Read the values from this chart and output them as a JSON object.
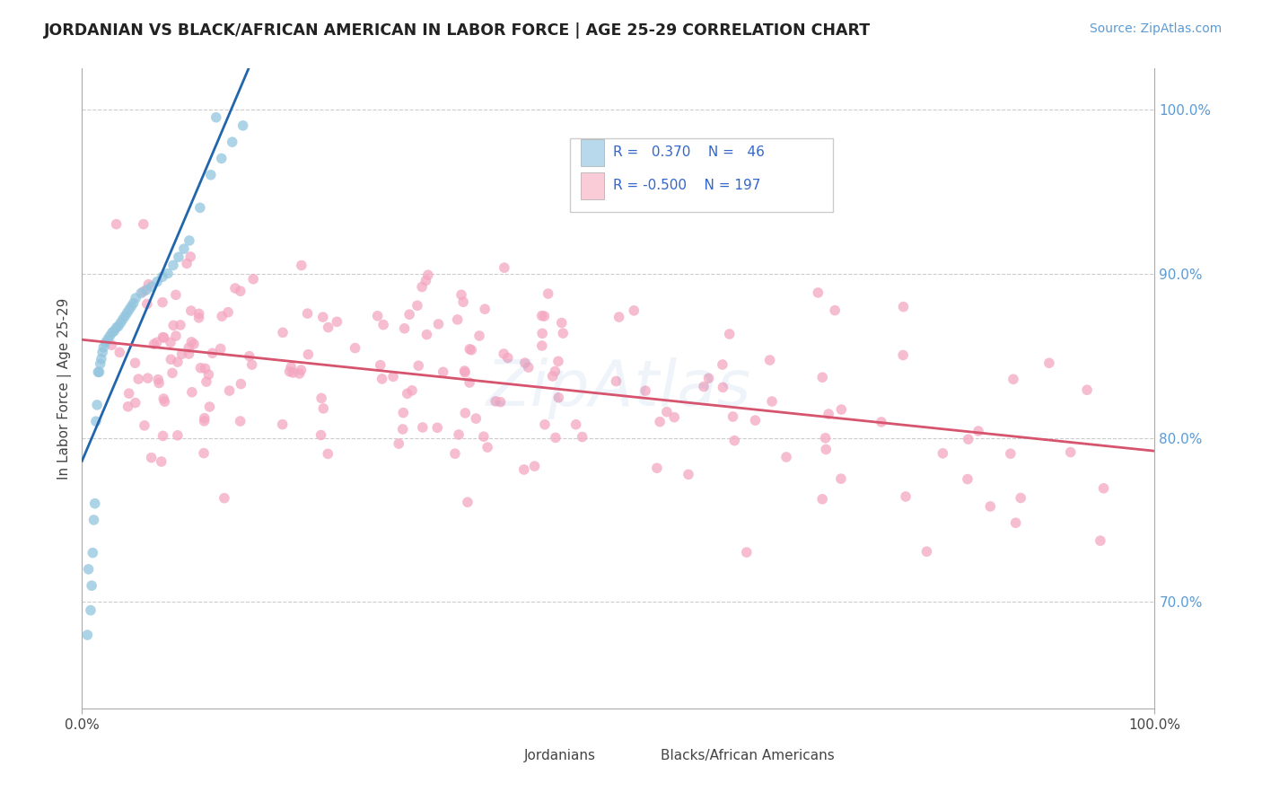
{
  "title": "JORDANIAN VS BLACK/AFRICAN AMERICAN IN LABOR FORCE | AGE 25-29 CORRELATION CHART",
  "source_text": "Source: ZipAtlas.com",
  "ylabel": "In Labor Force | Age 25-29",
  "xlim": [
    0.0,
    1.0
  ],
  "ylim": [
    0.635,
    1.025
  ],
  "y_tick_labels_right": [
    "70.0%",
    "80.0%",
    "90.0%",
    "100.0%"
  ],
  "y_tick_vals_right": [
    0.7,
    0.8,
    0.9,
    1.0
  ],
  "blue_color": "#92c5de",
  "pink_color": "#f4a6bf",
  "blue_fill": "#b8d9ec",
  "pink_fill": "#f9ccd8",
  "line_blue": "#2166ac",
  "line_pink": "#d6546e",
  "watermark": "ZipAtlas",
  "background_color": "#ffffff",
  "grid_color": "#cccccc"
}
